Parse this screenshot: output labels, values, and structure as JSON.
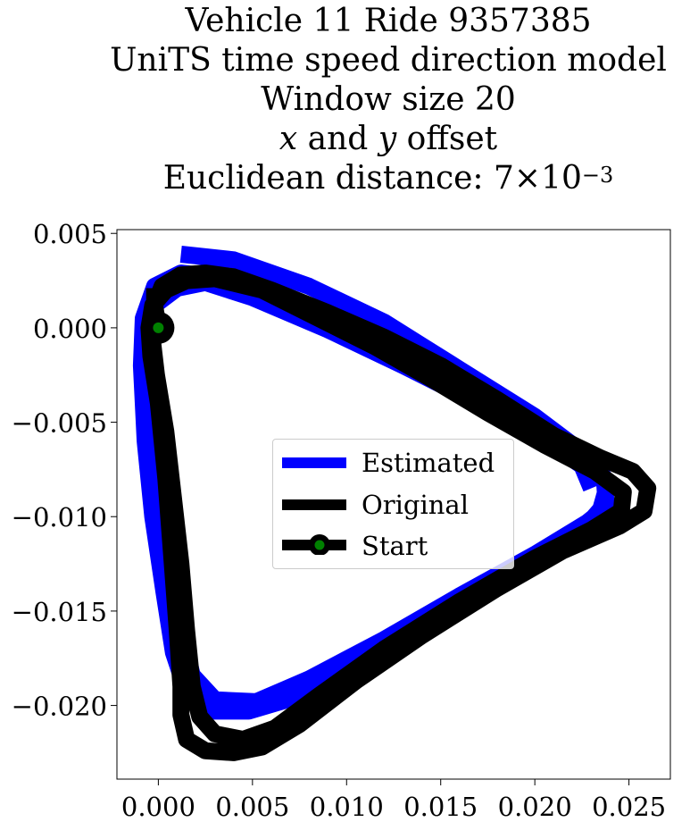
{
  "chart_data": {
    "type": "line",
    "title_lines": [
      "Vehicle 11 Ride 9357385",
      "UniTS time speed direction model",
      "Window size 20"
    ],
    "title_offset_line": {
      "x_var": "x",
      "and": "and",
      "y_var": "y",
      "rest": "offset"
    },
    "title_distance": {
      "prefix": "Euclidean distance: ",
      "mantissa": "7",
      "times": "×",
      "base": "10",
      "exponent": "−3"
    },
    "xlabel": "",
    "ylabel": "",
    "xlim": [
      -0.0022,
      0.0272
    ],
    "ylim": [
      -0.0239,
      0.0052
    ],
    "x_ticks": [
      0.0,
      0.005,
      0.01,
      0.015,
      0.02,
      0.025
    ],
    "x_tick_labels": [
      "0.000",
      "0.005",
      "0.010",
      "0.015",
      "0.020",
      "0.025"
    ],
    "y_ticks": [
      0.005,
      0.0,
      -0.005,
      -0.01,
      -0.015,
      -0.02
    ],
    "y_tick_labels": [
      "0.005",
      "0.000",
      "−0.005",
      "−0.010",
      "−0.015",
      "−0.020"
    ],
    "grid": false,
    "legend_position": "center",
    "series": [
      {
        "name": "Estimated",
        "color": "#0000ff",
        "points": [
          [
            0.0012,
            0.0039
          ],
          [
            0.004,
            0.0036
          ],
          [
            0.008,
            0.0022
          ],
          [
            0.012,
            0.0003
          ],
          [
            0.016,
            -0.0022
          ],
          [
            0.02,
            -0.0047
          ],
          [
            0.0228,
            -0.0068
          ],
          [
            0.0239,
            -0.0082
          ],
          [
            0.0235,
            -0.0096
          ],
          [
            0.0222,
            -0.0111
          ],
          [
            0.019,
            -0.0131
          ],
          [
            0.015,
            -0.0154
          ],
          [
            0.011,
            -0.0176
          ],
          [
            0.0075,
            -0.0195
          ],
          [
            0.0048,
            -0.0203
          ],
          [
            0.0028,
            -0.0203
          ],
          [
            0.0015,
            -0.0193
          ],
          [
            0.0008,
            -0.0172
          ],
          [
            0.0003,
            -0.014
          ],
          [
            -0.0003,
            -0.01
          ],
          [
            -0.0007,
            -0.006
          ],
          [
            -0.0009,
            -0.002
          ],
          [
            -0.0008,
            0.0005
          ],
          [
            -0.0002,
            0.0022
          ],
          [
            0.0012,
            0.0029
          ],
          [
            0.003,
            0.0027
          ],
          [
            0.006,
            0.0017
          ],
          [
            0.01,
            -0.0001
          ],
          [
            0.014,
            -0.0021
          ],
          [
            0.018,
            -0.0043
          ],
          [
            0.0215,
            -0.0064
          ],
          [
            0.0237,
            -0.0081
          ],
          [
            0.0238,
            -0.0095
          ],
          [
            0.0228,
            -0.0103
          ],
          [
            0.02,
            -0.012
          ],
          [
            0.016,
            -0.0142
          ],
          [
            0.012,
            -0.0165
          ],
          [
            0.008,
            -0.0186
          ],
          [
            0.0052,
            -0.0198
          ],
          [
            0.003,
            -0.0197
          ],
          [
            0.0018,
            -0.0184
          ],
          [
            0.0012,
            -0.016
          ],
          [
            0.0006,
            -0.012
          ],
          [
            0.0,
            -0.008
          ],
          [
            -0.0004,
            -0.004
          ],
          [
            -0.0005,
            -0.001
          ],
          [
            -0.0002,
            0.0012
          ],
          [
            0.001,
            0.0021
          ],
          [
            0.0025,
            0.0024
          ],
          [
            0.005,
            0.0016
          ],
          [
            0.009,
            -0.0001
          ],
          [
            0.013,
            -0.002
          ],
          [
            0.017,
            -0.004
          ],
          [
            0.0205,
            -0.0059
          ],
          [
            0.0225,
            -0.0073
          ],
          [
            0.023,
            -0.0085
          ]
        ]
      },
      {
        "name": "Original",
        "color": "#000000",
        "points": [
          [
            0.0,
            0.0
          ],
          [
            -0.0002,
            0.0012
          ],
          [
            0.0002,
            0.0022
          ],
          [
            0.0012,
            0.0028
          ],
          [
            0.0025,
            0.0029
          ],
          [
            0.004,
            0.0027
          ],
          [
            0.006,
            0.002
          ],
          [
            0.009,
            0.0008
          ],
          [
            0.012,
            -0.0005
          ],
          [
            0.015,
            -0.002
          ],
          [
            0.018,
            -0.0038
          ],
          [
            0.021,
            -0.0057
          ],
          [
            0.0235,
            -0.0069
          ],
          [
            0.0252,
            -0.0076
          ],
          [
            0.026,
            -0.0085
          ],
          [
            0.0258,
            -0.0097
          ],
          [
            0.0245,
            -0.0105
          ],
          [
            0.0215,
            -0.0118
          ],
          [
            0.018,
            -0.0138
          ],
          [
            0.014,
            -0.0163
          ],
          [
            0.0105,
            -0.0187
          ],
          [
            0.0075,
            -0.021
          ],
          [
            0.0055,
            -0.0222
          ],
          [
            0.004,
            -0.0225
          ],
          [
            0.0025,
            -0.0224
          ],
          [
            0.0015,
            -0.0218
          ],
          [
            0.0012,
            -0.0205
          ],
          [
            0.0012,
            -0.019
          ],
          [
            0.001,
            -0.016
          ],
          [
            0.0007,
            -0.012
          ],
          [
            0.0004,
            -0.008
          ],
          [
            0.0,
            -0.004
          ],
          [
            -0.0004,
            -0.0015
          ],
          [
            -0.0005,
            0.0
          ],
          [
            -0.0003,
            0.0012
          ],
          [
            0.0004,
            0.002
          ],
          [
            0.0015,
            0.0025
          ],
          [
            0.003,
            0.0026
          ],
          [
            0.0055,
            0.002
          ],
          [
            0.0085,
            0.0005
          ],
          [
            0.0115,
            -0.001
          ],
          [
            0.0145,
            -0.0027
          ],
          [
            0.0175,
            -0.0045
          ],
          [
            0.0205,
            -0.0062
          ],
          [
            0.0232,
            -0.0076
          ],
          [
            0.0247,
            -0.0087
          ],
          [
            0.0246,
            -0.0097
          ],
          [
            0.023,
            -0.0107
          ],
          [
            0.02,
            -0.0122
          ],
          [
            0.016,
            -0.0145
          ],
          [
            0.012,
            -0.017
          ],
          [
            0.0085,
            -0.0195
          ],
          [
            0.0062,
            -0.0212
          ],
          [
            0.0045,
            -0.0218
          ],
          [
            0.003,
            -0.0215
          ],
          [
            0.0022,
            -0.0206
          ],
          [
            0.0018,
            -0.019
          ],
          [
            0.0015,
            -0.016
          ],
          [
            0.0012,
            -0.0125
          ],
          [
            0.0008,
            -0.009
          ],
          [
            0.0004,
            -0.0055
          ],
          [
            -0.0001,
            -0.0025
          ],
          [
            -0.0003,
            -0.0008
          ],
          [
            -0.0002,
            0.0007
          ],
          [
            -0.0002,
            0.0021
          ]
        ]
      }
    ],
    "start_point": {
      "name": "Start",
      "x": 0.0,
      "y": 0.0,
      "fill": "#008000",
      "edge": "#000000"
    },
    "legend_entries": [
      "Estimated",
      "Original",
      "Start"
    ]
  }
}
